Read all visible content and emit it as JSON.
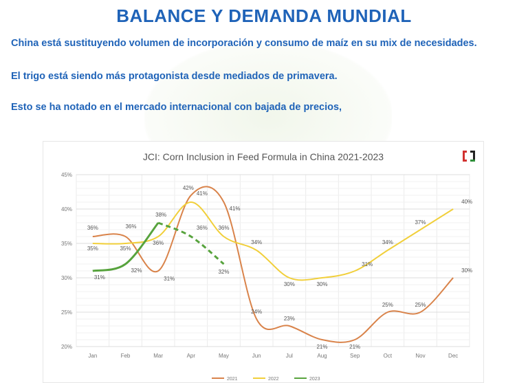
{
  "header": {
    "title": "BALANCE Y DEMANDA MUNDIAL",
    "lines": [
      "China está sustituyendo  volumen de incorporación  y consumo de maíz  en su mix de necesidades.",
      "El trigo está siendo más protagonista  desde mediados de primavera.",
      "Esto se ha notado  en el mercado  internacional  con bajada  de precios,"
    ]
  },
  "chart_data": {
    "type": "line",
    "title": "JCI: Corn Inclusion in Feed Formula in China 2021-2023",
    "categories": [
      "Jan",
      "Feb",
      "Mar",
      "Apr",
      "May",
      "Jun",
      "Jul",
      "Aug",
      "Sep",
      "Oct",
      "Nov",
      "Dec"
    ],
    "yticks": [
      "20%",
      "25%",
      "30%",
      "35%",
      "40%",
      "45%"
    ],
    "ylim": [
      20,
      45
    ],
    "grid": true,
    "legend_position": "bottom",
    "series": [
      {
        "name": "2021",
        "color": "#d9834a",
        "dashed": false,
        "values": [
          36,
          36,
          31,
          42,
          41,
          24,
          23,
          21,
          21,
          25,
          25,
          30
        ],
        "labels": [
          "36%",
          "36%",
          "31%",
          "42%",
          "41%",
          "24%",
          "23%",
          "21%",
          "21%",
          "25%",
          "25%",
          "30%"
        ]
      },
      {
        "name": "2022",
        "color": "#f1cf3a",
        "dashed": false,
        "values": [
          35,
          35,
          36,
          41,
          36,
          34,
          30,
          30,
          31,
          34,
          37,
          40
        ],
        "labels": [
          "35%",
          "35%",
          "36%",
          "41%",
          "36%",
          "34%",
          "30%",
          "30%",
          "31%",
          "34%",
          "37%",
          "40%"
        ]
      },
      {
        "name": "2023",
        "color": "#57a33d",
        "dashed_from_index": 3,
        "values": [
          31,
          32,
          38,
          36,
          32,
          null,
          null,
          null,
          null,
          null,
          null,
          null
        ],
        "labels": [
          "31%",
          "32%",
          "38%",
          "36%",
          "32%",
          null,
          null,
          null,
          null,
          null,
          null,
          null
        ]
      }
    ]
  }
}
